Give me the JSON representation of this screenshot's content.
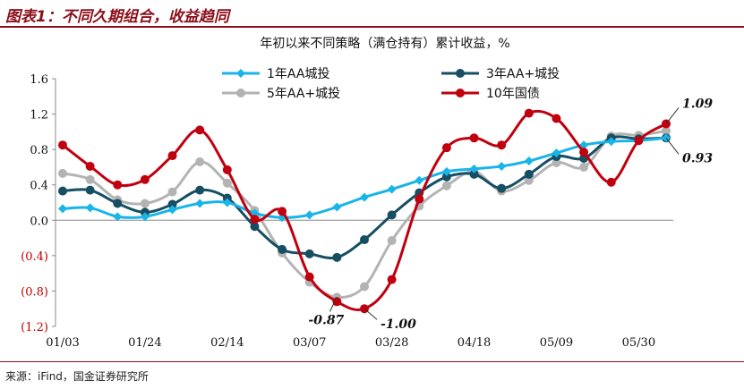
{
  "header": {
    "title": "图表1：不同久期组合，收益趋同"
  },
  "footer": {
    "source": "来源：iFind，国金证券研究所"
  },
  "colors": {
    "accent": "#8a0f1a"
  },
  "chart_data": {
    "type": "line",
    "title": "年初以来不同策略（满仓持有）累计收益，%",
    "xlabel": "",
    "ylabel": "",
    "ylim": [
      -1.2,
      1.6
    ],
    "yticks": [
      1.6,
      1.2,
      0.8,
      0.4,
      0.0,
      -0.4,
      -0.8,
      -1.2
    ],
    "ytick_labels": [
      "1.6",
      "1.2",
      "0.8",
      "0.4",
      "0.0",
      "(0.4)",
      "(0.8)",
      "(1.2)"
    ],
    "negative_label_color": "#c00000",
    "categories": [
      "01/03",
      "01/10",
      "01/17",
      "01/24",
      "01/31",
      "02/07",
      "02/14",
      "02/21",
      "02/28",
      "03/07",
      "03/14",
      "03/21",
      "03/28",
      "04/04",
      "04/11",
      "04/18",
      "04/25",
      "05/02",
      "05/09",
      "05/16",
      "05/23",
      "05/30",
      "06/06"
    ],
    "xtick_labels": [
      "01/03",
      "01/24",
      "02/14",
      "03/07",
      "03/28",
      "04/18",
      "05/09",
      "05/30"
    ],
    "legend": "top",
    "grid": false,
    "series": [
      {
        "name": "1年AA城投",
        "color": "#19b4e8",
        "marker": "diamond",
        "values": [
          0.13,
          0.14,
          0.04,
          0.04,
          0.12,
          0.19,
          0.2,
          0.08,
          0.03,
          0.06,
          0.15,
          0.26,
          0.35,
          0.45,
          0.55,
          0.58,
          0.61,
          0.67,
          0.76,
          0.85,
          0.89,
          0.9,
          0.93
        ]
      },
      {
        "name": "3年AA+城投",
        "color": "#164e63",
        "marker": "circle",
        "values": [
          0.33,
          0.34,
          0.19,
          0.09,
          0.18,
          0.34,
          0.25,
          -0.07,
          -0.33,
          -0.38,
          -0.42,
          -0.22,
          0.06,
          0.31,
          0.49,
          0.52,
          0.36,
          0.52,
          0.72,
          0.7,
          0.93,
          0.92,
          0.93
        ]
      },
      {
        "name": "5年AA+城投",
        "color": "#b3b3b3",
        "marker": "circle",
        "values": [
          0.53,
          0.46,
          0.23,
          0.19,
          0.32,
          0.66,
          0.42,
          0.11,
          -0.37,
          -0.7,
          -0.87,
          -0.75,
          -0.23,
          0.16,
          0.39,
          0.55,
          0.33,
          0.45,
          0.65,
          0.6,
          0.95,
          0.96,
          1.01
        ]
      },
      {
        "name": "10年国债",
        "color": "#c0000e",
        "marker": "circle",
        "values": [
          0.85,
          0.61,
          0.4,
          0.46,
          0.73,
          1.02,
          0.57,
          0.01,
          0.1,
          -0.64,
          -0.92,
          -1.0,
          -0.67,
          0.24,
          0.82,
          0.93,
          0.85,
          1.21,
          1.15,
          0.77,
          0.43,
          0.9,
          1.09
        ]
      }
    ],
    "annotations": [
      "1.09",
      "0.93",
      "-0.87",
      "-1.00"
    ]
  }
}
